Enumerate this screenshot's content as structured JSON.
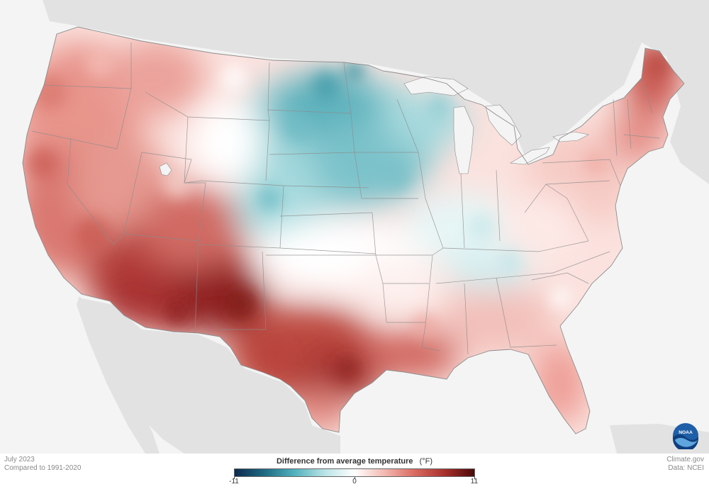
{
  "header": {
    "period": "July 2023",
    "baseline": "Compared to 1991-2020"
  },
  "legend": {
    "title": "Difference from average temperature",
    "unit": "(°F)",
    "min_label": "-11",
    "mid_label": "0",
    "max_label": "11",
    "range": [
      -11,
      0,
      11
    ],
    "colors": [
      "#0d2a4f",
      "#1e6b82",
      "#52b1bd",
      "#b9e3e6",
      "#ffffff",
      "#f2b9b2",
      "#d96b62",
      "#a8302c",
      "#4b0a0a"
    ]
  },
  "credits": {
    "source": "Climate.gov",
    "data": "Data: NCEI"
  },
  "logo": {
    "text": "NOAA",
    "icon": "noaa-logo-icon"
  },
  "map": {
    "background_land": "#e2e2e2",
    "water": "#f4f4f4",
    "border_color": "#8c8c8c"
  }
}
